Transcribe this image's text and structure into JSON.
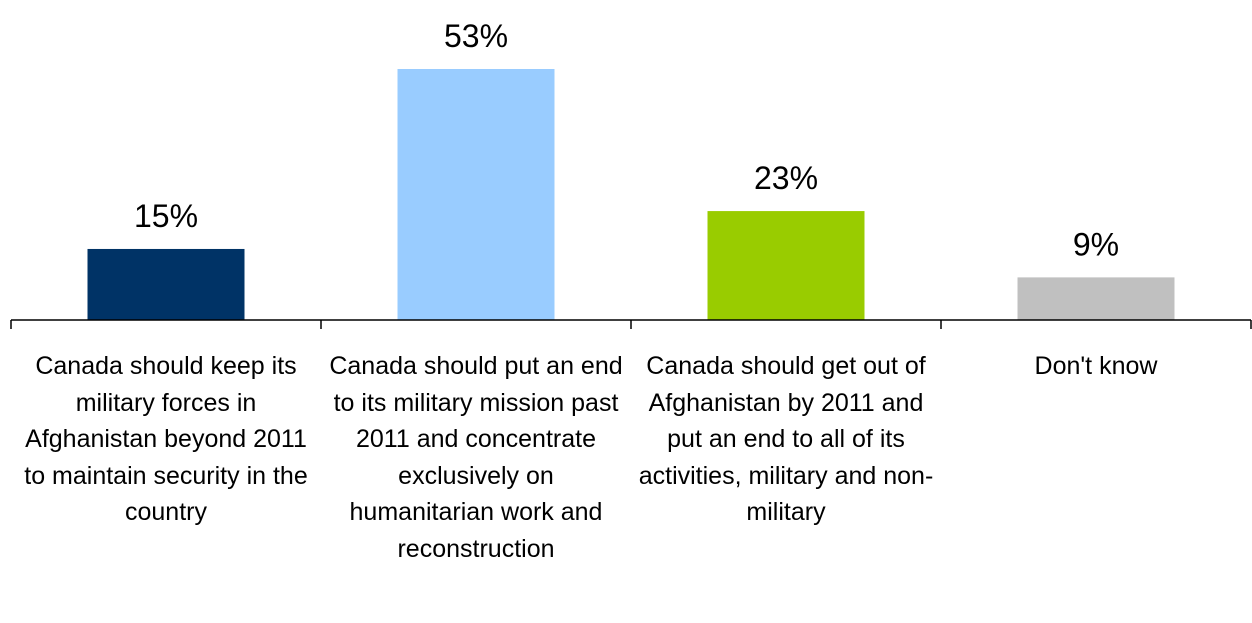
{
  "chart_data": {
    "type": "bar",
    "categories": [
      "Canada should keep its military forces in Afghanistan beyond 2011 to maintain security in the country",
      "Canada should put an end to its military mission past 2011 and concentrate exclusively on humanitarian work and reconstruction",
      "Canada should get out of Afghanistan by 2011 and put an end to all of its activities, military and non-military",
      "Don't know"
    ],
    "values": [
      15,
      53,
      23,
      9
    ],
    "value_labels": [
      "15%",
      "53%",
      "23%",
      "9%"
    ],
    "colors": [
      "#003366",
      "#99ccff",
      "#99cc00",
      "#c0c0c0"
    ],
    "title": "",
    "xlabel": "",
    "ylabel": "",
    "ylim": [
      0,
      53
    ],
    "grid": false,
    "legend": "none"
  }
}
